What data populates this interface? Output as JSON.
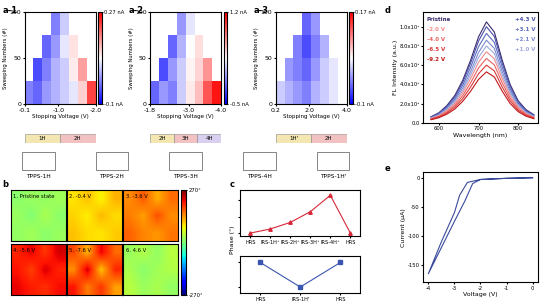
{
  "chart_data": [
    {
      "panel": "a-1",
      "type": "heatmap",
      "xlabel": "Stopping Voltage (V)",
      "ylabel": "Sweeping Numbers (#)",
      "xlim": [
        -0.1,
        -2.0
      ],
      "xticks": [
        -0.1,
        -1.0,
        -2.0
      ],
      "ylim": [
        0,
        100
      ],
      "yticks": [
        0,
        50,
        100
      ],
      "cells": [
        [
          -0.05,
          -0.06,
          -0.04,
          -0.03,
          -0.02,
          -0.01,
          0.05,
          0.2
        ],
        [
          null,
          -0.07,
          -0.05,
          -0.03,
          -0.02,
          0.02,
          0.1,
          null
        ],
        [
          null,
          null,
          -0.06,
          -0.04,
          -0.01,
          0.03,
          null,
          null
        ],
        [
          null,
          null,
          null,
          -0.05,
          -0.02,
          null,
          null,
          null
        ]
      ],
      "cbar_lim": [
        -0.1,
        0.27
      ],
      "cbar_ticks": [
        {
          "value": -0.1,
          "label": "-0.1 nA"
        },
        {
          "value": 0.27,
          "label": "0.27 nA"
        }
      ],
      "states": [
        "1H",
        "2H"
      ]
    },
    {
      "panel": "a-2",
      "type": "heatmap",
      "xlabel": "Stopping Voltage (V)",
      "ylabel": "Sweeping Numbers (#)",
      "xlim": [
        -1.8,
        -4.0
      ],
      "xticks": [
        -1.8,
        -3.0,
        -4.0
      ],
      "ylim": [
        0,
        100
      ],
      "yticks": [
        0,
        50,
        100
      ],
      "cells": [
        [
          -0.3,
          -0.2,
          -0.25,
          -0.1,
          0.1,
          0.3,
          0.8,
          1.1
        ],
        [
          null,
          -0.35,
          -0.2,
          -0.1,
          0.05,
          0.2,
          0.5,
          null
        ],
        [
          null,
          null,
          -0.3,
          -0.15,
          0.0,
          0.15,
          null,
          null
        ],
        [
          null,
          null,
          null,
          -0.2,
          -0.05,
          null,
          null,
          null
        ]
      ],
      "cbar_lim": [
        -0.5,
        1.2
      ],
      "cbar_ticks": [
        {
          "value": -0.5,
          "label": "-0.5 nA"
        },
        {
          "value": 1.2,
          "label": "1.2 nA"
        }
      ],
      "states": [
        "2H",
        "3H",
        "4H"
      ]
    },
    {
      "panel": "a-3",
      "type": "heatmap",
      "xlabel": "Stopping Voltage (V)",
      "ylabel": "Sweeping Numbers (#)",
      "xlim": [
        0.2,
        4.0
      ],
      "xticks": [
        0.2,
        2.0,
        4.0
      ],
      "ylim": [
        0,
        100
      ],
      "yticks": [
        0,
        50,
        100
      ],
      "cells": [
        [
          -0.02,
          -0.03,
          -0.04,
          -0.05,
          -0.03,
          -0.02,
          -0.01,
          0.0
        ],
        [
          null,
          -0.04,
          -0.05,
          -0.06,
          -0.04,
          -0.02,
          -0.01,
          null
        ],
        [
          null,
          null,
          -0.05,
          -0.07,
          -0.05,
          -0.03,
          null,
          null
        ],
        [
          null,
          null,
          null,
          -0.06,
          -0.04,
          null,
          null,
          null
        ]
      ],
      "cbar_lim": [
        -0.1,
        0.17
      ],
      "cbar_ticks": [
        {
          "value": -0.1,
          "label": "-0.1 nA"
        },
        {
          "value": 0.17,
          "label": "0.17 nA"
        }
      ],
      "states": [
        "1H'",
        "2H"
      ]
    },
    {
      "panel": "b",
      "type": "heatmap_grid",
      "cbar_lim": [
        -270,
        270
      ],
      "cbar_ticks": [
        {
          "value": 270,
          "label": "270°"
        },
        {
          "value": -270,
          "label": "-270°"
        }
      ],
      "tiles": [
        {
          "title": "1. Pristine state",
          "cells": [
            [
              10,
              20,
              15,
              25
            ],
            [
              20,
              5,
              30,
              10
            ],
            [
              15,
              25,
              10,
              20
            ]
          ]
        },
        {
          "title": "2. -0.4 V",
          "cells": [
            [
              90,
              110,
              80,
              120
            ],
            [
              100,
              85,
              115,
              95
            ],
            [
              110,
              95,
              90,
              105
            ]
          ]
        },
        {
          "title": "3. -3.6 V",
          "cells": [
            [
              140,
              170,
              120,
              160
            ],
            [
              150,
              130,
              175,
              140
            ],
            [
              165,
              145,
              135,
              155
            ]
          ]
        },
        {
          "title": "4. -5.6 V",
          "cells": [
            [
              200,
              220,
              190,
              230
            ],
            [
              210,
              185,
              225,
              200
            ],
            [
              220,
              205,
              195,
              215
            ]
          ]
        },
        {
          "title": "5. -7.6 V",
          "cells": [
            [
              180,
              120,
              220,
              160
            ],
            [
              140,
              230,
              110,
              200
            ],
            [
              210,
              150,
              190,
              130
            ]
          ]
        },
        {
          "title": "6. 4.6 V",
          "cells": [
            [
              20,
              35,
              15,
              40
            ],
            [
              30,
              10,
              25,
              35
            ],
            [
              40,
              20,
              30,
              15
            ]
          ]
        }
      ]
    },
    {
      "panel": "c",
      "type": "line",
      "ylabel": "Phase (°)",
      "tick_labels": "x",
      "marker": "^",
      "categories": [
        "HRS",
        "IRS-1H⁺",
        "IRS-2H⁺",
        "IRS-3H⁺",
        "IRS-4H⁺",
        "HRS"
      ],
      "values": [
        0,
        25,
        65,
        130,
        230,
        0
      ],
      "color": "#d62839",
      "ylim": [
        -20,
        260
      ],
      "yticks": [
        0,
        100,
        200
      ]
    },
    {
      "type": "line",
      "tick_labels": "x",
      "marker": "s",
      "categories": [
        "HRS",
        "IRS-1H'",
        "HRS"
      ],
      "values": [
        0,
        -60,
        0
      ],
      "color": "#3a56b0",
      "ylim": [
        -75,
        15
      ],
      "yticks": [
        -60,
        0
      ]
    },
    {
      "panel": "d",
      "type": "line",
      "xlabel": "Wavelength (nm)",
      "ylabel": "FL Intensity (a.u.)",
      "xlim": [
        560,
        850
      ],
      "xticks": [
        600,
        700,
        800
      ],
      "ylim": [
        0,
        11500
      ],
      "yticks": [
        {
          "value": 0,
          "label": "0.0"
        },
        {
          "value": 2000,
          "label": "2.0x10³"
        },
        {
          "value": 4000,
          "label": "4.0x10³"
        },
        {
          "value": 6000,
          "label": "6.0x10³"
        },
        {
          "value": 8000,
          "label": "8.0x10³"
        },
        {
          "value": 10000,
          "label": "1.0x10⁴"
        }
      ],
      "x": [
        580,
        600,
        620,
        640,
        660,
        680,
        700,
        720,
        740,
        760,
        780,
        800,
        820,
        840
      ],
      "series": [
        {
          "name": "Pristine",
          "color": "#3b2a6b",
          "values": [
            630,
            1050,
            1790,
            2840,
            4410,
            6510,
            8930,
            10500,
            9450,
            6510,
            3990,
            2310,
            1370,
            840
          ]
        },
        {
          "name": "+4.3 V",
          "color": "#4a4fa8",
          "values": [
            600,
            1000,
            1700,
            2700,
            4200,
            6200,
            8500,
            10000,
            9000,
            6200,
            3800,
            2200,
            1300,
            800
          ]
        },
        {
          "name": "+3.1 V",
          "color": "#5b6cc0",
          "values": [
            560,
            930,
            1580,
            2510,
            3910,
            5770,
            7910,
            9300,
            8370,
            5770,
            3530,
            2050,
            1210,
            740
          ]
        },
        {
          "name": "+2.1 V",
          "color": "#7a8ad0",
          "values": [
            520,
            860,
            1460,
            2320,
            3610,
            5330,
            7310,
            8600,
            7740,
            5330,
            3270,
            1890,
            1120,
            690
          ]
        },
        {
          "name": "+1.0 V",
          "color": "#9fa9de",
          "values": [
            480,
            800,
            1360,
            2160,
            3360,
            4960,
            6800,
            8000,
            7200,
            4960,
            3040,
            1760,
            1040,
            640
          ]
        },
        {
          "name": "-2.0 V",
          "color": "#f08a8a",
          "values": [
            440,
            740,
            1260,
            2000,
            3110,
            4590,
            6290,
            7400,
            6660,
            4590,
            2810,
            1630,
            960,
            590
          ]
        },
        {
          "name": "-4.0 V",
          "color": "#e86060",
          "values": [
            400,
            670,
            1140,
            1810,
            2810,
            4150,
            5700,
            6700,
            6030,
            4150,
            2550,
            1470,
            870,
            540
          ]
        },
        {
          "name": "-6.5 V",
          "color": "#d83a3a",
          "values": [
            360,
            600,
            1020,
            1620,
            2520,
            3720,
            5100,
            6000,
            5400,
            3720,
            2280,
            1320,
            780,
            480
          ]
        },
        {
          "name": "-9.2 V",
          "color": "#c01818",
          "values": [
            320,
            530,
            900,
            1430,
            2230,
            3290,
            4510,
            5300,
            4770,
            3290,
            2010,
            1170,
            690,
            420
          ]
        }
      ]
    },
    {
      "panel": "e",
      "type": "line",
      "xlabel": "Voltage (V)",
      "ylabel": "Current (μA)",
      "xlim": [
        -4.2,
        0.2
      ],
      "xticks": [
        -4,
        -3,
        -2,
        -1,
        0
      ],
      "ylim": [
        -180,
        10
      ],
      "yticks": [
        -150,
        -100,
        -50,
        0
      ],
      "color": "#3a4a9a",
      "x": [
        0,
        -1,
        -2,
        -2.5,
        -2.8,
        -3,
        -3.5,
        -4,
        -3.5,
        -3,
        -2.6,
        -2.3,
        -2,
        -1,
        0
      ],
      "values": [
        0,
        -1,
        -3,
        -8,
        -30,
        -60,
        -110,
        -165,
        -120,
        -75,
        -40,
        -10,
        -3,
        -1,
        0
      ]
    }
  ],
  "molecules": [
    "TPPS-1H",
    "TPPS-2H",
    "TPPS-3H",
    "TPPS-4H",
    "TPPS-1H'"
  ]
}
